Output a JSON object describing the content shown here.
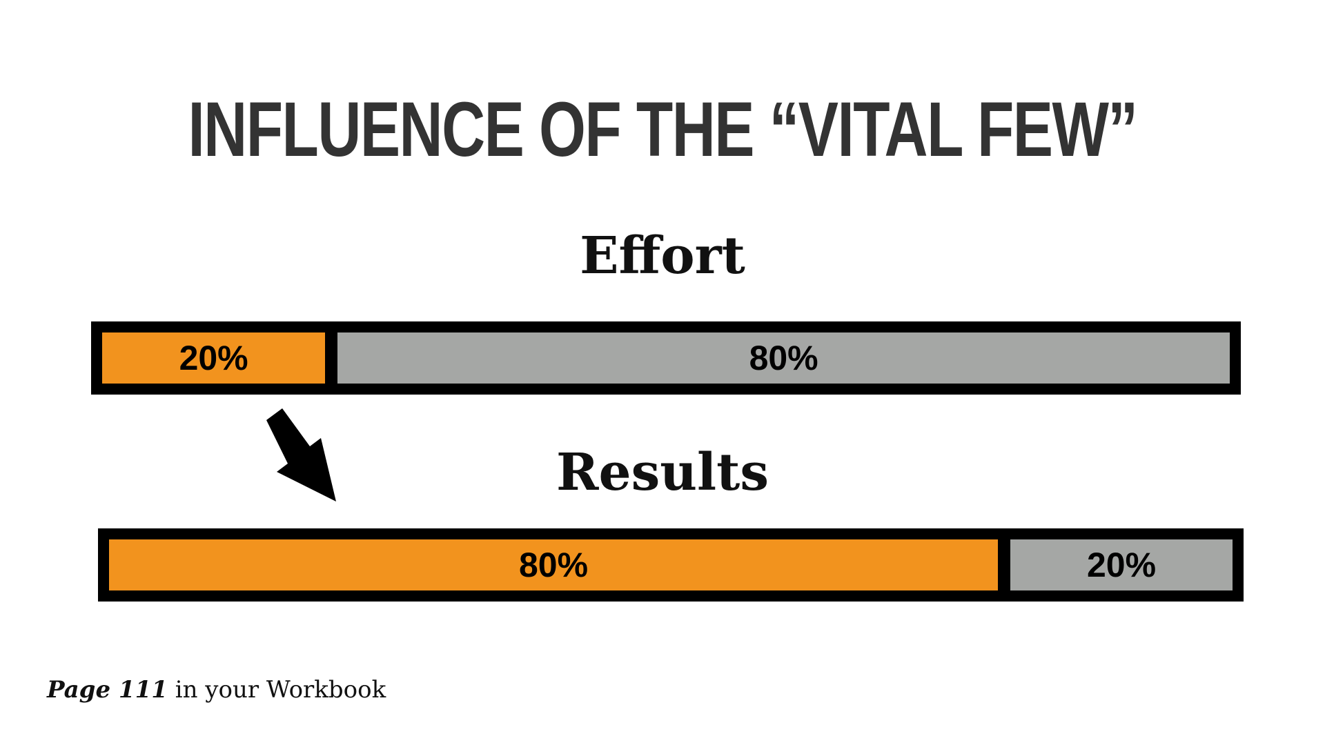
{
  "slide": {
    "title": "INFLUENCE OF THE “VITAL FEW”"
  },
  "effort": {
    "heading": "Effort",
    "segments": [
      {
        "label": "20%",
        "share": 0.2,
        "color": "#f2931e"
      },
      {
        "label": "80%",
        "share": 0.8,
        "color": "#a5a7a5"
      }
    ]
  },
  "results": {
    "heading": "Results",
    "segments": [
      {
        "label": "80%",
        "share": 0.8,
        "color": "#f2931e"
      },
      {
        "label": "20%",
        "share": 0.2,
        "color": "#a5a7a5"
      }
    ]
  },
  "arrow": {
    "icon": "arrow-down-right-icon",
    "color": "#000000"
  },
  "footer": {
    "page_ref": "Page 111",
    "rest": " in your Workbook"
  }
}
